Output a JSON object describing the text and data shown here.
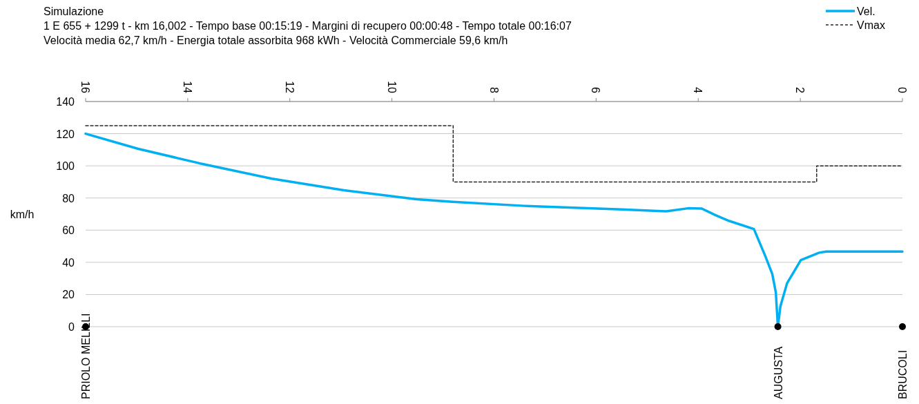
{
  "chart_data": {
    "type": "line",
    "title": "Simulazione",
    "subtitle": "1 E 655 + 1299 t  -  km 16,002  -  Tempo base 00:15:19  -  Margini di recupero 00:00:48  -  Tempo totale 00:16:07\nVelocità media 62,7 km/h  -  Energia totale assorbita 968 kWh  -  Velocità Commerciale 59,6 km/h",
    "ylabel": "km/h",
    "xlim": [
      16,
      0
    ],
    "xticks": [
      16,
      14,
      12,
      10,
      8,
      6,
      4,
      2,
      0
    ],
    "ylim": [
      0,
      140
    ],
    "yticks": [
      0,
      20,
      40,
      60,
      80,
      100,
      120,
      140
    ],
    "grid": "y",
    "legend": "top right",
    "series": [
      {
        "name": "Vel.",
        "type": "line",
        "color": "#00b0f0",
        "line_style": "solid",
        "marker": "none",
        "x": [
          16,
          14.97,
          13.77,
          12.35,
          10.94,
          9.52,
          8.81,
          7.4,
          5.5,
          4.63,
          4.2,
          3.93,
          3.66,
          3.39,
          2.91,
          2.69,
          2.55,
          2.48,
          2.44,
          2.39,
          2.26,
          1.99,
          1.63,
          1.49,
          0
        ],
        "values": [
          120,
          110.6,
          101.6,
          92,
          84.8,
          79.2,
          77.6,
          75.1,
          72.9,
          71.7,
          73.6,
          73.4,
          69.3,
          65.7,
          60.7,
          44.2,
          32.8,
          21.3,
          0,
          12.7,
          27,
          41.4,
          46,
          46.7,
          46.7
        ]
      },
      {
        "name": "Vmax",
        "type": "step",
        "color": "#262626",
        "line_style": "dashed",
        "marker": "none",
        "x": [
          16,
          8.8,
          1.68,
          0
        ],
        "values": [
          125,
          90,
          100,
          100
        ]
      },
      {
        "type": "scatter",
        "color": "#000000",
        "marker": "circle",
        "x": [
          16,
          2.44,
          0
        ],
        "values": [
          0,
          0,
          0
        ]
      }
    ],
    "annotations": [
      {
        "text": "PRIOLO MELILLI",
        "x": 16,
        "y": 0
      },
      {
        "text": "AUGUSTA",
        "x": 2.44,
        "y": 0
      },
      {
        "text": "BRUCOLI",
        "x": 0,
        "y": 0
      }
    ]
  }
}
